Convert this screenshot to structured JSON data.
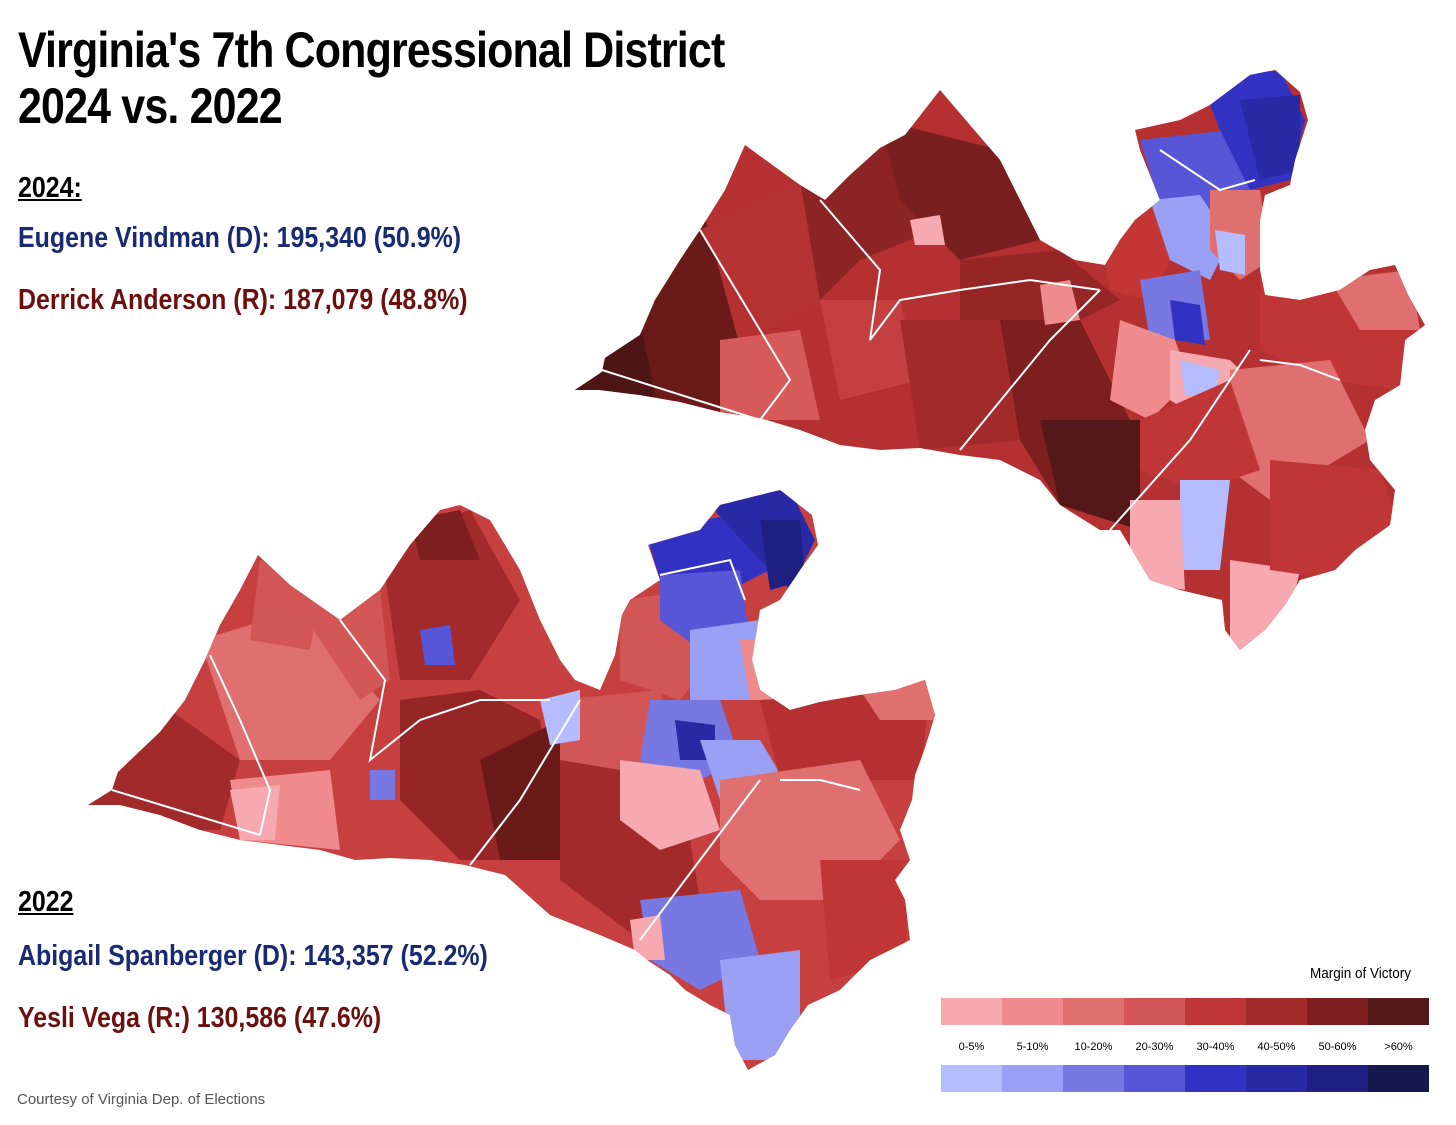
{
  "title": {
    "line1": "Virginia's 7th Congressional District",
    "line2": "2024 vs. 2022"
  },
  "results_2024": {
    "heading": "2024:",
    "dem": {
      "text": "Eugene Vindman (D): 195,340 (50.9%)",
      "party": "D"
    },
    "rep": {
      "text": "Derrick Anderson (R): 187,079 (48.8%)",
      "party": "R"
    }
  },
  "results_2022": {
    "heading": "2022",
    "dem": {
      "text": "Abigail Spanberger (D): 143,357 (52.2%)",
      "party": "D"
    },
    "rep": {
      "text": "Yesli Vega (R:) 130,586 (47.6%)",
      "party": "R"
    }
  },
  "legend": {
    "title": "Margin of Victory",
    "bins": [
      "0-5%",
      "5-10%",
      "10-20%",
      "20-30%",
      "30-40%",
      "40-50%",
      "50-60%",
      ">60%"
    ],
    "rep_colors": [
      "#f7a9b1",
      "#f08b8d",
      "#e07070",
      "#d35656",
      "#c03636",
      "#a32a2a",
      "#7e1f1f",
      "#551818"
    ],
    "dem_colors": [
      "#b5bcff",
      "#9aa1f5",
      "#7878e3",
      "#5656d6",
      "#3131c2",
      "#272aa4",
      "#1e1f80",
      "#15174f"
    ]
  },
  "credit": "Courtesy of Virginia Dep. of Elections",
  "colors": {
    "dem_text": "#1a2a72",
    "rep_text": "#6b0f0f",
    "boundary": "#ffffff"
  }
}
